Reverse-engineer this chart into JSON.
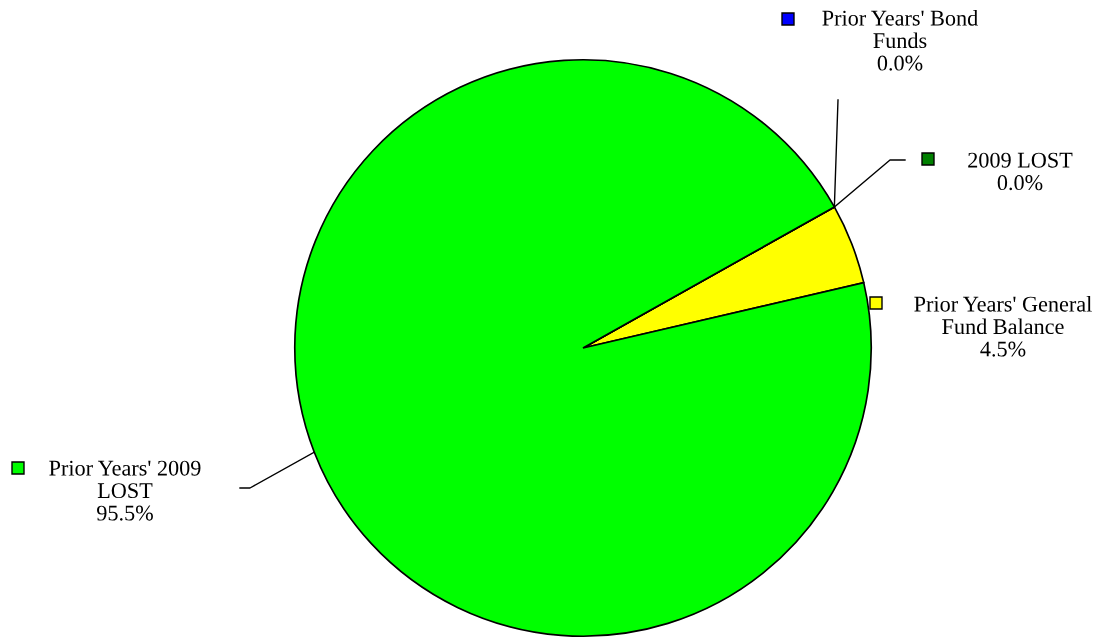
{
  "chart_data": {
    "type": "pie",
    "categories": [
      "Prior Years' General Fund Balance",
      "2009 LOST",
      "Prior Years' Bond Funds",
      "Prior Years' 2009 LOST"
    ],
    "values": [
      4.5,
      0.0,
      0.0,
      95.5
    ],
    "colors": [
      "#ffff00",
      "#008000",
      "#0000ff",
      "#00ff00"
    ],
    "value_labels": [
      "4.5%",
      "0.0%",
      "0.0%",
      "95.5%"
    ],
    "legend": "top left"
  }
}
